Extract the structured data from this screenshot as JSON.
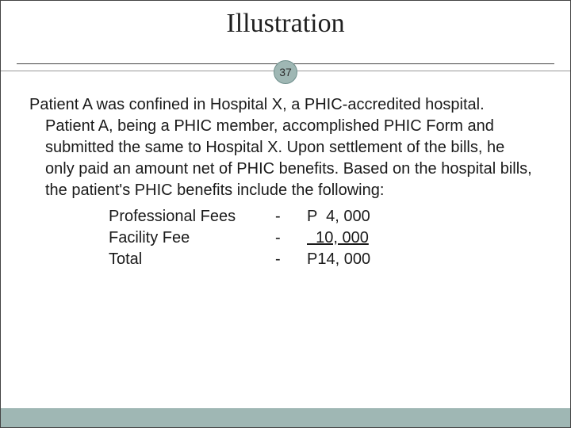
{
  "colors": {
    "titleColor": "#1f1f1f",
    "bodyColor": "#1a1a1a",
    "badgeBg": "#9fb7b4",
    "badgeBorder": "#6e8e8b",
    "badgeText": "#2c2c2c",
    "bottomAccent": "#9fb7b4"
  },
  "typography": {
    "titleFontSize": 34,
    "bodyFontSize": 20,
    "badgeFontSize": 14
  },
  "title": "Illustration",
  "pageNumber": "37",
  "paragraph": "Patient A was confined in Hospital X, a PHIC-accredited hospital.  Patient A, being a PHIC member, accomplished PHIC Form and submitted the same to Hospital X.  Upon settlement of the bills, he only paid an amount net of PHIC benefits.  Based on the hospital bills, the patient's PHIC benefits include the following:",
  "fees": [
    {
      "label": "Professional Fees",
      "dash": "-",
      "amount": "P  4, 000",
      "underline": false
    },
    {
      "label": "Facility Fee",
      "dash": "-",
      "amount": "  10, 000",
      "underline": true
    },
    {
      "label": "Total",
      "dash": "-",
      "amount": "P14, 000",
      "underline": false
    }
  ]
}
